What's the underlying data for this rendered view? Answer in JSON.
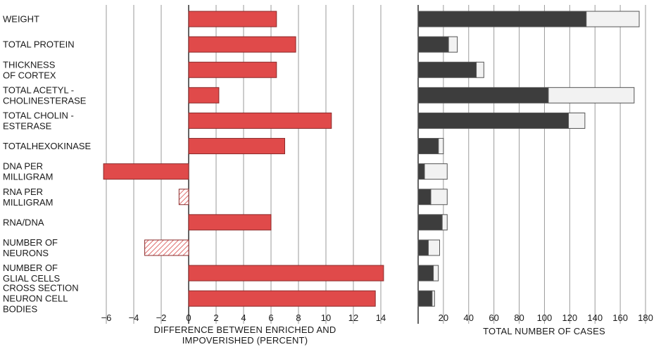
{
  "chart_data": [
    {
      "type": "bar",
      "orientation": "horizontal",
      "categories": [
        [
          "WEIGHT"
        ],
        [
          "TOTAL PROTEIN"
        ],
        [
          "THICKNESS",
          "OF CORTEX"
        ],
        [
          "TOTAL ACETYL -",
          "CHOLINESTERASE"
        ],
        [
          "TOTAL CHOLIN -",
          "ESTERASE"
        ],
        [
          "TOTALHEXOKINASE"
        ],
        [
          "DNA PER",
          "MILLIGRAM"
        ],
        [
          "RNA PER",
          "MILLIGRAM"
        ],
        [
          "RNA/DNA"
        ],
        [
          "NUMBER OF",
          "NEURONS"
        ],
        [
          "NUMBER OF",
          "GLIAL CELLS"
        ],
        [
          "CROSS SECTION",
          "NEURON CELL",
          "BODIES"
        ]
      ],
      "values": [
        6.4,
        7.8,
        6.4,
        2.2,
        10.4,
        7.0,
        -6.2,
        -0.7,
        6.0,
        -3.2,
        14.2,
        13.6
      ],
      "hatched": [
        false,
        false,
        false,
        false,
        false,
        false,
        false,
        true,
        false,
        true,
        false,
        false
      ],
      "xlabel": "DIFFERENCE BETWEEN ENRICHED AND IMPOVERISHED (PERCENT)",
      "xlabel_lines": [
        "DIFFERENCE BETWEEN ENRICHED AND",
        "IMPOVERISHED (PERCENT)"
      ],
      "xlim": [
        -6,
        14
      ],
      "ticks": [
        -6,
        -4,
        -2,
        0,
        2,
        4,
        6,
        8,
        10,
        12,
        14
      ],
      "tick_labels": [
        "−6",
        "−4",
        "−2",
        "0",
        "2",
        "4",
        "6",
        "8",
        "10",
        "12",
        "14"
      ],
      "grid": true,
      "colors": {
        "bar": "#e04a4a",
        "bar_edge": "#8a2a2a",
        "hatch": "#d84848"
      }
    },
    {
      "type": "bar",
      "orientation": "horizontal",
      "stacked": true,
      "series": [
        {
          "values": [
            133,
            24,
            46,
            103,
            119,
            16,
            5,
            10,
            19,
            8,
            12,
            11
          ]
        },
        {
          "values": [
            42,
            7,
            6,
            68,
            13,
            4,
            18,
            13,
            4,
            9,
            4,
            2
          ]
        }
      ],
      "xlabel": "TOTAL NUMBER OF CASES",
      "xlim": [
        0,
        180
      ],
      "ticks": [
        20,
        40,
        60,
        80,
        100,
        120,
        140,
        160,
        180
      ],
      "tick_labels": [
        "20",
        "40",
        "60",
        "80",
        "100",
        "120",
        "140",
        "160",
        "180"
      ],
      "grid": true,
      "colors": {
        "dark": "#3d3d3d",
        "light": "#f2f2f2",
        "edge": "#555555"
      }
    }
  ]
}
